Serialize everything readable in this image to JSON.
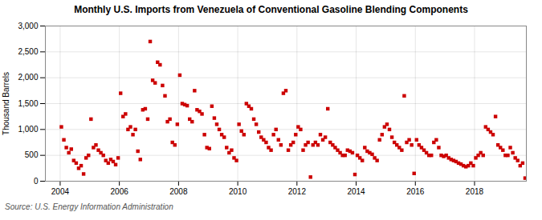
{
  "chart_data": {
    "type": "scatter",
    "title": "Monthly U.S. Imports from Venezuela of Conventional Gasoline Blending Components",
    "ylabel": "Thousand Barrels",
    "annotation": "Source: U.S. Energy Information Administration",
    "color": "#CC0000",
    "marker": "square",
    "grid": true,
    "xlim": [
      2003.5,
      2019.75
    ],
    "xticks": [
      2004,
      2006,
      2008,
      2010,
      2012,
      2014,
      2016,
      2018
    ],
    "ylim": [
      0,
      3000
    ],
    "yticks": [
      0,
      500,
      {
        "value": 1000,
        "label": "1,000"
      },
      {
        "value": 1500,
        "label": "1,500"
      },
      {
        "value": 2000,
        "label": "2,000"
      },
      {
        "value": 2500,
        "label": "2,500"
      },
      {
        "value": 3000,
        "label": "3,000"
      }
    ],
    "x": [
      2004.0416666666667,
      2004.125,
      2004.2083333333333,
      2004.2916666666667,
      2004.375,
      2004.4583333333333,
      2004.5416666666667,
      2004.625,
      2004.7083333333333,
      2004.7916666666667,
      2004.875,
      2004.9583333333333,
      2005.0416666666667,
      2005.125,
      2005.2083333333333,
      2005.2916666666667,
      2005.375,
      2005.4583333333333,
      2005.5416666666667,
      2005.625,
      2005.7083333333333,
      2005.7916666666667,
      2005.875,
      2005.9583333333333,
      2006.0416666666667,
      2006.125,
      2006.2083333333333,
      2006.2916666666667,
      2006.375,
      2006.4583333333333,
      2006.5416666666667,
      2006.625,
      2006.7083333333333,
      2006.7916666666667,
      2006.875,
      2006.9583333333333,
      2007.0416666666667,
      2007.125,
      2007.2083333333333,
      2007.2916666666667,
      2007.375,
      2007.4583333333333,
      2007.5416666666667,
      2007.625,
      2007.7083333333333,
      2007.7916666666667,
      2007.875,
      2007.9583333333333,
      2008.0416666666667,
      2008.125,
      2008.2083333333333,
      2008.2916666666667,
      2008.375,
      2008.4583333333333,
      2008.5416666666667,
      2008.625,
      2008.7083333333333,
      2008.7916666666667,
      2008.875,
      2008.9583333333333,
      2009.0416666666667,
      2009.125,
      2009.2083333333333,
      2009.2916666666667,
      2009.375,
      2009.4583333333333,
      2009.5416666666667,
      2009.625,
      2009.7083333333333,
      2009.7916666666667,
      2009.875,
      2009.9583333333333,
      2010.0416666666667,
      2010.125,
      2010.2083333333333,
      2010.2916666666667,
      2010.375,
      2010.4583333333333,
      2010.5416666666667,
      2010.625,
      2010.7083333333333,
      2010.7916666666667,
      2010.875,
      2010.9583333333333,
      2011.0416666666667,
      2011.125,
      2011.2083333333333,
      2011.2916666666667,
      2011.375,
      2011.4583333333333,
      2011.5416666666667,
      2011.625,
      2011.7083333333333,
      2011.7916666666667,
      2011.875,
      2011.9583333333333,
      2012.0416666666667,
      2012.125,
      2012.2083333333333,
      2012.2916666666667,
      2012.375,
      2012.4583333333333,
      2012.5416666666667,
      2012.625,
      2012.7083333333333,
      2012.7916666666667,
      2012.875,
      2012.9583333333333,
      2013.0416666666667,
      2013.125,
      2013.2083333333333,
      2013.2916666666667,
      2013.375,
      2013.4583333333333,
      2013.5416666666667,
      2013.625,
      2013.7083333333333,
      2013.7916666666667,
      2013.875,
      2013.9583333333333,
      2014.0416666666667,
      2014.125,
      2014.2083333333333,
      2014.2916666666667,
      2014.375,
      2014.4583333333333,
      2014.5416666666667,
      2014.625,
      2014.7083333333333,
      2014.7916666666667,
      2014.875,
      2014.9583333333333,
      2015.0416666666667,
      2015.125,
      2015.2083333333333,
      2015.2916666666667,
      2015.375,
      2015.4583333333333,
      2015.5416666666667,
      2015.625,
      2015.7083333333333,
      2015.7916666666667,
      2015.875,
      2015.9583333333333,
      2016.0416666666667,
      2016.125,
      2016.2083333333333,
      2016.2916666666667,
      2016.375,
      2016.4583333333333,
      2016.5416666666667,
      2016.625,
      2016.7083333333333,
      2016.7916666666667,
      2016.875,
      2016.9583333333333,
      2017.0416666666667,
      2017.125,
      2017.2083333333333,
      2017.2916666666667,
      2017.375,
      2017.4583333333333,
      2017.5416666666667,
      2017.625,
      2017.7083333333333,
      2017.7916666666667,
      2017.875,
      2017.9583333333333,
      2018.0416666666667,
      2018.125,
      2018.2083333333333,
      2018.2916666666667,
      2018.375,
      2018.4583333333333,
      2018.5416666666667,
      2018.625,
      2018.7083333333333,
      2018.7916666666667,
      2018.875,
      2018.9583333333333,
      2019.0416666666667,
      2019.125,
      2019.2083333333333,
      2019.2916666666667,
      2019.375,
      2019.4583333333333,
      2019.5416666666667,
      2019.625,
      2019.7083333333333
    ],
    "values": [
      1050,
      800,
      650,
      550,
      620,
      400,
      350,
      250,
      300,
      140,
      450,
      500,
      1200,
      650,
      700,
      600,
      550,
      500,
      400,
      350,
      420,
      380,
      320,
      450,
      1700,
      1250,
      1300,
      1000,
      1050,
      900,
      1000,
      580,
      420,
      1380,
      1400,
      1200,
      2700,
      1950,
      1900,
      2300,
      2250,
      1850,
      1650,
      1150,
      1200,
      750,
      700,
      1100,
      2050,
      1500,
      1480,
      1460,
      1200,
      1150,
      1750,
      1380,
      1350,
      1300,
      900,
      650,
      630,
      1450,
      1220,
      1100,
      1000,
      900,
      850,
      650,
      550,
      600,
      450,
      400,
      1100,
      970,
      900,
      1500,
      1450,
      1400,
      1200,
      1100,
      950,
      850,
      800,
      750,
      650,
      600,
      900,
      1000,
      800,
      700,
      1700,
      1750,
      600,
      700,
      750,
      900,
      1050,
      1000,
      600,
      700,
      750,
      80,
      700,
      750,
      700,
      900,
      800,
      850,
      1400,
      750,
      700,
      650,
      600,
      550,
      500,
      500,
      600,
      580,
      550,
      130,
      500,
      450,
      400,
      650,
      580,
      550,
      520,
      450,
      400,
      800,
      900,
      1050,
      1100,
      1000,
      850,
      750,
      700,
      650,
      600,
      1650,
      750,
      800,
      700,
      150,
      800,
      700,
      650,
      600,
      550,
      500,
      500,
      750,
      800,
      650,
      500,
      480,
      500,
      450,
      420,
      400,
      380,
      350,
      330,
      300,
      280,
      300,
      350,
      300,
      450,
      500,
      550,
      500,
      1050,
      1000,
      950,
      900,
      1250,
      700,
      650,
      600,
      500,
      500,
      650,
      550,
      450,
      400,
      300,
      350,
      60
    ]
  }
}
